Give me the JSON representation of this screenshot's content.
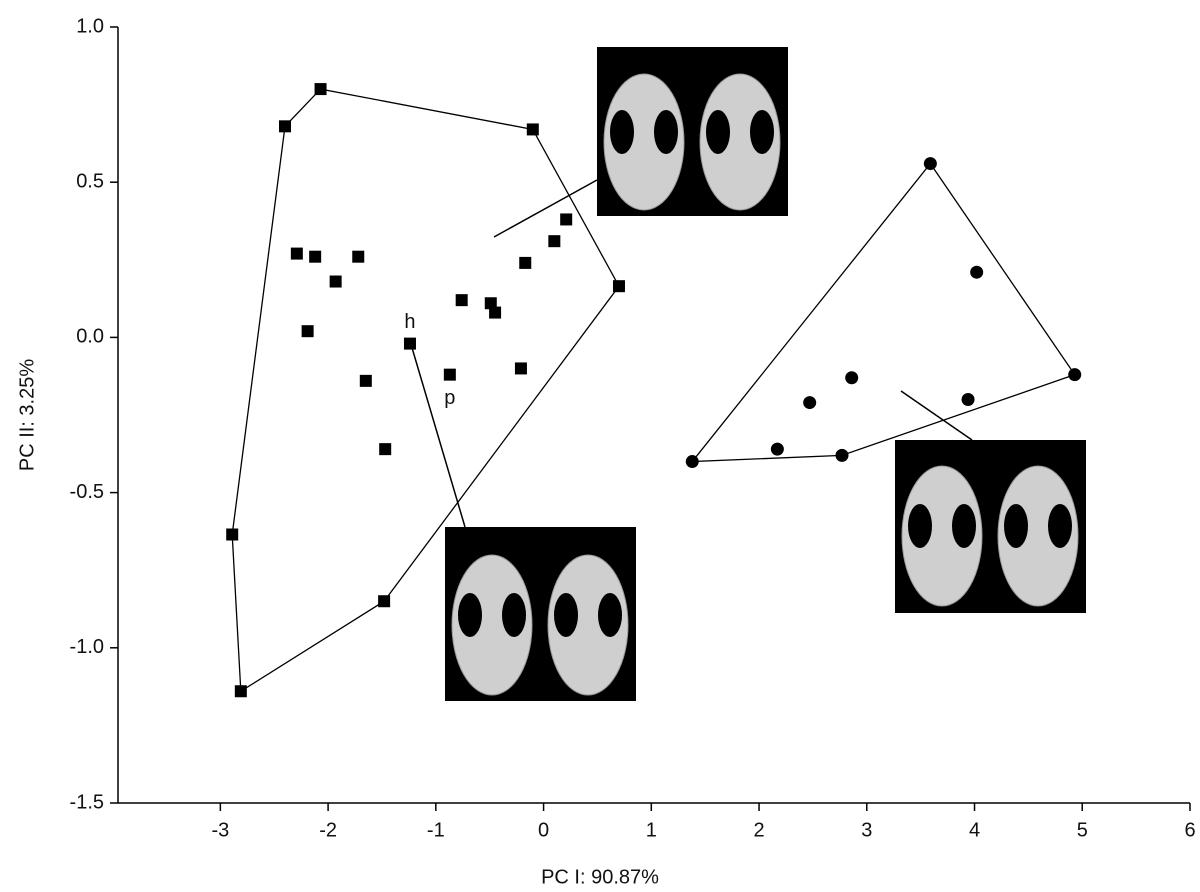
{
  "chart_data": {
    "type": "scatter",
    "x_label": "PC I: 90.87%",
    "y_label": "PC II: 3.25%",
    "xlim": [
      -3.95,
      6
    ],
    "ylim": [
      -1.5,
      1.0
    ],
    "xticks": [
      -3,
      -2,
      -1,
      0,
      1,
      2,
      3,
      4,
      5,
      6
    ],
    "yticks": [
      {
        "value": 1.0,
        "label": "1.0"
      },
      0.5,
      {
        "value": 0.0,
        "label": "0.0"
      },
      -0.5,
      {
        "value": -1.0,
        "label": "-1.0"
      },
      -1.5
    ],
    "hulls": true,
    "series": [
      {
        "marker": "square",
        "color": "#000000",
        "x": [
          -2.4,
          -2.07,
          -0.1,
          0.7,
          -1.48,
          -2.81,
          -2.89,
          -2.29,
          -2.12,
          -1.93,
          -1.72,
          -2.19,
          -1.65,
          -1.47,
          -1.24,
          -0.76,
          -0.49,
          -0.45,
          -0.87,
          -0.21,
          -0.17,
          0.1,
          0.21
        ],
        "values": [
          0.68,
          0.8,
          0.67,
          0.165,
          -0.85,
          -1.14,
          -0.635,
          0.27,
          0.26,
          0.18,
          0.26,
          0.02,
          -0.14,
          -0.36,
          -0.02,
          0.12,
          0.11,
          0.08,
          -0.12,
          -0.1,
          0.24,
          0.31,
          0.38
        ]
      },
      {
        "marker": "circle",
        "color": "#000000",
        "x": [
          1.38,
          3.59,
          4.93,
          4.02,
          3.94,
          2.86,
          2.47,
          2.17,
          2.77
        ],
        "values": [
          -0.4,
          0.56,
          -0.12,
          0.21,
          -0.2,
          -0.13,
          -0.21,
          -0.36,
          -0.38
        ]
      }
    ],
    "annotations": [
      {
        "text": "h",
        "x": -1.24,
        "y": -0.02
      },
      {
        "text": "p",
        "x": -0.87,
        "y": -0.12
      }
    ]
  }
}
